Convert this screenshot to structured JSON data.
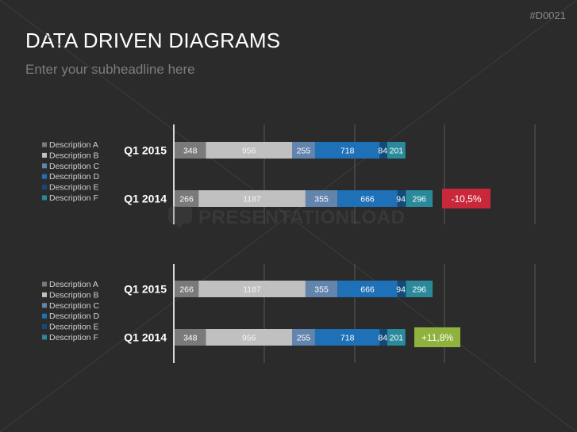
{
  "slide": {
    "code": "#D0021",
    "title": "DATA DRIVEN DIAGRAMS",
    "subtitle": "Enter your subheadline here",
    "watermark": "PRESENTATIONLOAD"
  },
  "colors": {
    "Description A": "#7a7a7a",
    "Description B": "#c0c0c0",
    "Description C": "#6284ad",
    "Description D": "#1e70b7",
    "Description E": "#134a7a",
    "Description F": "#2a8a9c",
    "negative_badge": "#c8283a",
    "positive_badge": "#8fb13d"
  },
  "chart_data": [
    {
      "type": "bar",
      "orientation": "horizontal",
      "stacked": true,
      "categories": [
        "Q1 2015",
        "Q1 2014"
      ],
      "legend": [
        "Description A",
        "Description B",
        "Description C",
        "Description D",
        "Description E",
        "Description F"
      ],
      "series": [
        {
          "name": "Description A",
          "values": [
            348,
            266
          ]
        },
        {
          "name": "Description B",
          "values": [
            956,
            1187
          ]
        },
        {
          "name": "Description C",
          "values": [
            255,
            355
          ]
        },
        {
          "name": "Description D",
          "values": [
            718,
            666
          ]
        },
        {
          "name": "Description E",
          "values": [
            84,
            94
          ]
        },
        {
          "name": "Description F",
          "values": [
            201,
            296
          ]
        }
      ],
      "annotation": "-10,5%",
      "xlim": [
        0,
        4000
      ],
      "grid": true
    },
    {
      "type": "bar",
      "orientation": "horizontal",
      "stacked": true,
      "categories": [
        "Q1 2015",
        "Q1 2014"
      ],
      "legend": [
        "Description A",
        "Description B",
        "Description C",
        "Description D",
        "Description E",
        "Description F"
      ],
      "series": [
        {
          "name": "Description A",
          "values": [
            266,
            348
          ]
        },
        {
          "name": "Description B",
          "values": [
            1187,
            956
          ]
        },
        {
          "name": "Description C",
          "values": [
            355,
            255
          ]
        },
        {
          "name": "Description D",
          "values": [
            666,
            718
          ]
        },
        {
          "name": "Description E",
          "values": [
            94,
            84
          ]
        },
        {
          "name": "Description F",
          "values": [
            296,
            201
          ]
        }
      ],
      "annotation": "+11,8%",
      "xlim": [
        0,
        4000
      ],
      "grid": true
    }
  ]
}
